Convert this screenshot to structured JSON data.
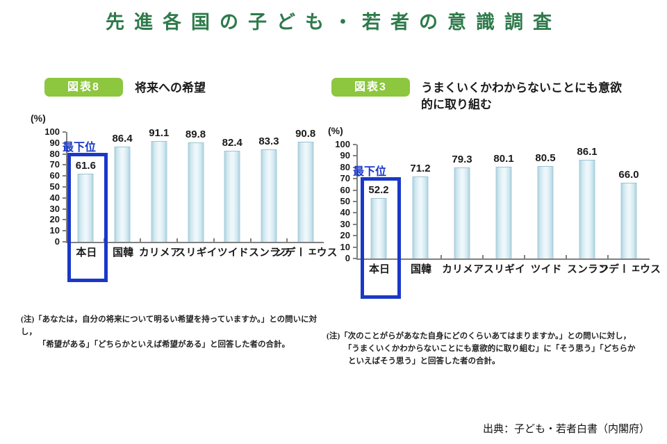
{
  "page": {
    "title": "先進各国の子ども・若者の意識調査"
  },
  "footer": {
    "source": "出典：子ども・若者白書（内閣府）"
  },
  "colors": {
    "title_green": "#2e7a4b",
    "badge_green": "#8dc63f",
    "highlight_blue": "#1a38c8",
    "axis_gray": "#808080",
    "bar_edge": "#a3cbdb",
    "bar_mid": "#cfe7ef",
    "bar_center": "#eef7fa"
  },
  "chart_data": [
    {
      "type": "bar",
      "badge": "図表8",
      "title": "将来への希望",
      "unit": "(%)",
      "categories": [
        "日本",
        "韓国",
        "アメリカ",
        "イギリス",
        "ドイツ",
        "フランス",
        "スウェーデン"
      ],
      "values": [
        61.6,
        86.4,
        91.1,
        89.8,
        82.4,
        83.3,
        90.8
      ],
      "ylim": [
        0,
        100
      ],
      "yticks": [
        0,
        10,
        20,
        30,
        40,
        50,
        60,
        70,
        80,
        90,
        100
      ],
      "grid": false,
      "annotation": "最下位",
      "highlight_category": "日本",
      "note": {
        "prefix": "(注)",
        "lines": [
          "「あなたは，自分の将来について明るい希望を持っていますか。」との問いに対し，",
          "「希望がある」「どちらかといえば希望がある」と回答した者の合計。"
        ]
      }
    },
    {
      "type": "bar",
      "badge": "図表3",
      "title": "うまくいくかわからないことにも意欲的に取り組む",
      "unit": "(%)",
      "categories": [
        "日本",
        "韓国",
        "アメリカ",
        "イギリス",
        "ドイツ",
        "フランス",
        "スウェーデン"
      ],
      "values": [
        52.2,
        71.2,
        79.3,
        80.1,
        80.5,
        86.1,
        66.0
      ],
      "ylim": [
        0,
        100
      ],
      "yticks": [
        0,
        10,
        20,
        30,
        40,
        50,
        60,
        70,
        80,
        90,
        100
      ],
      "grid": false,
      "annotation": "最下位",
      "highlight_category": "日本",
      "note": {
        "prefix": "(注)",
        "lines": [
          "「次のことがらがあなた自身にどのくらいあてはまりますか。」との問いに対し，",
          "「うまくいくかわからないことにも意欲的に取り組む」に「そう思う」「どちらか",
          "といえばそう思う」と回答した者の合計。"
        ]
      }
    }
  ]
}
